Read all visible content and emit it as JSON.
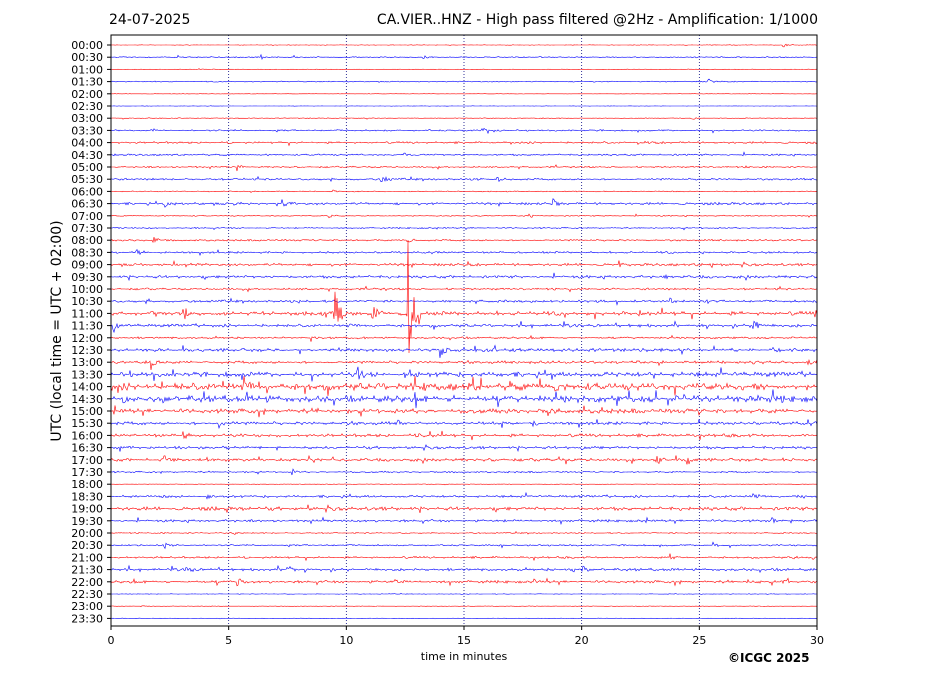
{
  "header": {
    "date": "24-07-2025",
    "title": "CA.VIER..HNZ - High pass filtered @2Hz - Amplification: 1/1000"
  },
  "footer": {
    "copyright": "©ICGC 2025"
  },
  "colors": {
    "trace_a": "#ff0000",
    "trace_b": "#0000ff",
    "frame": "#000000",
    "grid": "#000080"
  },
  "chart_data": {
    "type": "line",
    "title": "CA.VIER..HNZ - High pass filtered @2Hz - Amplification: 1/1000",
    "xlabel": "time in minutes",
    "ylabel": "UTC (local time = UTC + 02:00)",
    "xlim": [
      0,
      30
    ],
    "xticks": [
      0,
      5,
      10,
      15,
      20,
      25,
      30
    ],
    "grid": "vertical dotted lines at x ticks",
    "trace_colors_alternate": [
      "#ff0000",
      "#0000ff"
    ],
    "rows": [
      "00:00",
      "00:30",
      "01:00",
      "01:30",
      "02:00",
      "02:30",
      "03:00",
      "03:30",
      "04:00",
      "04:30",
      "05:00",
      "05:30",
      "06:00",
      "06:30",
      "07:00",
      "07:30",
      "08:00",
      "08:30",
      "09:00",
      "09:30",
      "10:00",
      "10:30",
      "11:00",
      "11:30",
      "12:00",
      "12:30",
      "13:00",
      "13:30",
      "14:00",
      "14:30",
      "15:00",
      "15:30",
      "16:00",
      "16:30",
      "17:00",
      "17:30",
      "18:00",
      "18:30",
      "19:00",
      "19:30",
      "20:00",
      "20:30",
      "21:00",
      "21:30",
      "22:00",
      "22:30",
      "23:00",
      "23:30"
    ],
    "noise_level": [
      0.3,
      0.6,
      0.3,
      0.5,
      0.2,
      0.2,
      0.4,
      0.8,
      1.0,
      0.9,
      0.8,
      1.0,
      0.5,
      1.2,
      0.6,
      0.7,
      0.9,
      1.0,
      1.3,
      1.4,
      1.0,
      1.2,
      2.0,
      1.5,
      1.0,
      1.6,
      1.4,
      2.4,
      3.6,
      3.2,
      2.2,
      1.6,
      1.6,
      1.4,
      1.5,
      0.8,
      0.3,
      1.2,
      1.8,
      1.2,
      0.6,
      0.8,
      1.0,
      1.3,
      1.3,
      0.3,
      0.3,
      0.3
    ],
    "events": [
      {
        "row": 0,
        "t": 28.6,
        "amp": 2
      },
      {
        "row": 1,
        "t": 6.4,
        "amp": 3
      },
      {
        "row": 1,
        "t": 13.3,
        "amp": 2
      },
      {
        "row": 3,
        "t": 25.4,
        "amp": 3
      },
      {
        "row": 6,
        "t": 24.7,
        "amp": 2
      },
      {
        "row": 7,
        "t": 15.8,
        "amp": 3
      },
      {
        "row": 7,
        "t": 16.3,
        "amp": 2
      },
      {
        "row": 8,
        "t": 17.0,
        "amp": 2
      },
      {
        "row": 8,
        "t": 22.4,
        "amp": 2
      },
      {
        "row": 9,
        "t": 12.5,
        "amp": 2
      },
      {
        "row": 10,
        "t": 5.4,
        "amp": 4
      },
      {
        "row": 10,
        "t": 27.0,
        "amp": 2
      },
      {
        "row": 11,
        "t": 11.5,
        "amp": 5
      },
      {
        "row": 11,
        "t": 15.6,
        "amp": 2
      },
      {
        "row": 11,
        "t": 16.4,
        "amp": 3
      },
      {
        "row": 12,
        "t": 9.4,
        "amp": 2
      },
      {
        "row": 13,
        "t": 2.3,
        "amp": 4
      },
      {
        "row": 13,
        "t": 5.2,
        "amp": 3
      },
      {
        "row": 13,
        "t": 7.3,
        "amp": 4
      },
      {
        "row": 13,
        "t": 18.8,
        "amp": 6
      },
      {
        "row": 14,
        "t": 9.3,
        "amp": 2
      },
      {
        "row": 14,
        "t": 17.8,
        "amp": 2
      },
      {
        "row": 16,
        "t": 1.8,
        "amp": 4
      },
      {
        "row": 16,
        "t": 12.6,
        "amp": 3
      },
      {
        "row": 17,
        "t": 1.1,
        "amp": 5
      },
      {
        "row": 17,
        "t": 25.0,
        "amp": 3
      },
      {
        "row": 18,
        "t": 2.7,
        "amp": 4
      },
      {
        "row": 18,
        "t": 21.6,
        "amp": 5
      },
      {
        "row": 18,
        "t": 25.5,
        "amp": 4
      },
      {
        "row": 19,
        "t": 23.5,
        "amp": 2
      },
      {
        "row": 21,
        "t": 23.8,
        "amp": 3
      },
      {
        "row": 21,
        "t": 25.0,
        "amp": 2
      },
      {
        "row": 22,
        "t": 1.8,
        "amp": 8
      },
      {
        "row": 22,
        "t": 3.1,
        "amp": 8
      },
      {
        "row": 22,
        "t": 9.5,
        "amp": 38
      },
      {
        "row": 22,
        "t": 11.1,
        "amp": 14
      },
      {
        "row": 22,
        "t": 12.6,
        "amp": 85
      },
      {
        "row": 22,
        "t": 13.0,
        "amp": 10
      },
      {
        "row": 22,
        "t": 22.4,
        "amp": 6
      },
      {
        "row": 22,
        "t": 29.9,
        "amp": 5
      },
      {
        "row": 23,
        "t": 0.1,
        "amp": 8
      },
      {
        "row": 23,
        "t": 27.3,
        "amp": 10
      },
      {
        "row": 24,
        "t": 8.5,
        "amp": 4
      },
      {
        "row": 24,
        "t": 10.4,
        "amp": 2
      },
      {
        "row": 25,
        "t": 14.0,
        "amp": 8
      },
      {
        "row": 25,
        "t": 28.1,
        "amp": 3
      },
      {
        "row": 26,
        "t": 1.7,
        "amp": 10
      },
      {
        "row": 26,
        "t": 27.3,
        "amp": 3
      },
      {
        "row": 26,
        "t": 29.6,
        "amp": 3
      },
      {
        "row": 27,
        "t": 5.9,
        "amp": 4
      },
      {
        "row": 27,
        "t": 10.5,
        "amp": 8
      },
      {
        "row": 27,
        "t": 12.7,
        "amp": 4
      },
      {
        "row": 28,
        "t": 2.2,
        "amp": 5
      },
      {
        "row": 28,
        "t": 13.3,
        "amp": 6
      },
      {
        "row": 28,
        "t": 18.9,
        "amp": 6
      },
      {
        "row": 28,
        "t": 27.3,
        "amp": 5
      },
      {
        "row": 29,
        "t": 0.5,
        "amp": 4
      },
      {
        "row": 29,
        "t": 2.2,
        "amp": 4
      },
      {
        "row": 29,
        "t": 27.5,
        "amp": 4
      },
      {
        "row": 30,
        "t": 18.6,
        "amp": 5
      },
      {
        "row": 31,
        "t": 4.6,
        "amp": 5
      },
      {
        "row": 31,
        "t": 12.2,
        "amp": 4
      },
      {
        "row": 31,
        "t": 17.9,
        "amp": 5
      },
      {
        "row": 32,
        "t": 3.1,
        "amp": 4
      },
      {
        "row": 32,
        "t": 13.1,
        "amp": 3
      },
      {
        "row": 33,
        "t": 20.0,
        "amp": 3
      },
      {
        "row": 34,
        "t": 2.3,
        "amp": 5
      },
      {
        "row": 34,
        "t": 23.2,
        "amp": 10
      },
      {
        "row": 34,
        "t": 24.5,
        "amp": 6
      },
      {
        "row": 34,
        "t": 28.6,
        "amp": 2
      },
      {
        "row": 35,
        "t": 7.7,
        "amp": 4
      },
      {
        "row": 37,
        "t": 4.1,
        "amp": 3
      },
      {
        "row": 37,
        "t": 27.3,
        "amp": 3
      },
      {
        "row": 37,
        "t": 29.2,
        "amp": 3
      },
      {
        "row": 38,
        "t": 5.4,
        "amp": 3
      },
      {
        "row": 39,
        "t": 28.1,
        "amp": 3
      },
      {
        "row": 39,
        "t": 29.9,
        "amp": 3
      },
      {
        "row": 40,
        "t": 5.2,
        "amp": 2
      },
      {
        "row": 41,
        "t": 2.3,
        "amp": 3
      },
      {
        "row": 41,
        "t": 25.6,
        "amp": 3
      },
      {
        "row": 42,
        "t": 23.8,
        "amp": 3
      },
      {
        "row": 42,
        "t": 29.0,
        "amp": 3
      },
      {
        "row": 42,
        "t": 29.8,
        "amp": 3
      },
      {
        "row": 43,
        "t": 3.2,
        "amp": 6
      },
      {
        "row": 43,
        "t": 7.5,
        "amp": 8
      },
      {
        "row": 43,
        "t": 19.6,
        "amp": 4
      },
      {
        "row": 43,
        "t": 20.1,
        "amp": 4
      },
      {
        "row": 44,
        "t": 5.4,
        "amp": 4
      },
      {
        "row": 44,
        "t": 12.0,
        "amp": 4
      },
      {
        "row": 44,
        "t": 18.0,
        "amp": 3
      },
      {
        "row": 44,
        "t": 27.1,
        "amp": 3
      },
      {
        "row": 44,
        "t": 28.6,
        "amp": 2
      },
      {
        "row": 46,
        "t": 1.3,
        "amp": 1
      }
    ]
  }
}
